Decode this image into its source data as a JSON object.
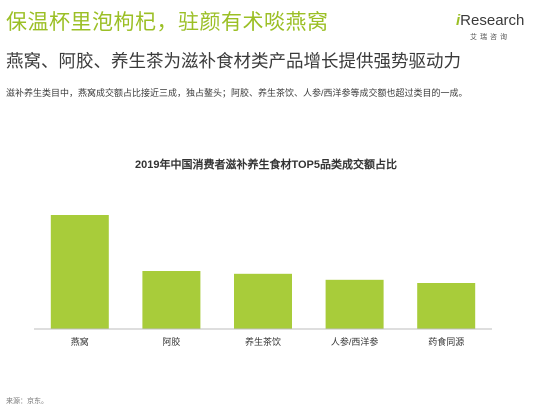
{
  "header": {
    "title": "保温杯里泡枸杞，驻颜有术啖燕窝",
    "subtitle": "燕窝、阿胶、养生茶为滋补食材类产品增长提供强势驱动力",
    "description": "滋补养生类目中，燕窝成交额占比接近三成，独占鳌头；阿胶、养生茶饮、人参/西洋参等成交额也超过类目的一成。"
  },
  "logo": {
    "brand_prefix": "i",
    "brand_rest": "Research",
    "tagline": "艾瑞咨询"
  },
  "chart_data": {
    "type": "bar",
    "title": "2019年中国消费者滋补养生食材TOP5品类成交额占比",
    "categories": [
      "燕窝",
      "阿胶",
      "养生茶饮",
      "人参/西洋参",
      "药食同源"
    ],
    "values": [
      28.5,
      14.5,
      13.8,
      12.3,
      11.5
    ],
    "xlabel": "",
    "ylabel": "",
    "ylim": [
      0,
      32
    ],
    "grid": false,
    "bar_color": "#a8cc3a"
  },
  "footer": {
    "source": "来源：京东。"
  },
  "colors": {
    "accent": "#9bbf25",
    "text": "#3a3a3a"
  }
}
